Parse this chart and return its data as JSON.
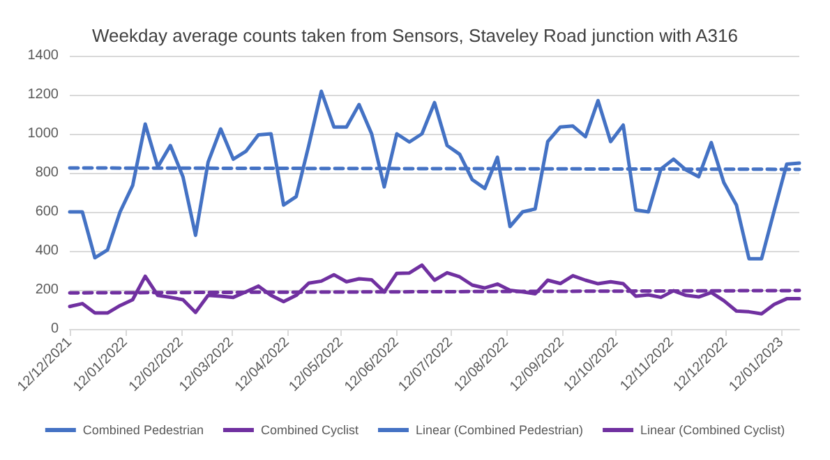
{
  "chart_data": {
    "type": "line",
    "title": "Weekday average counts taken from Sensors, Staveley Road junction with A316",
    "x": [
      "2021-12-12",
      "2021-12-19",
      "2021-12-26",
      "2022-01-02",
      "2022-01-09",
      "2022-01-16",
      "2022-01-23",
      "2022-01-30",
      "2022-02-06",
      "2022-02-13",
      "2022-02-20",
      "2022-02-27",
      "2022-03-06",
      "2022-03-13",
      "2022-03-20",
      "2022-03-27",
      "2022-04-03",
      "2022-04-10",
      "2022-04-17",
      "2022-04-24",
      "2022-05-01",
      "2022-05-08",
      "2022-05-15",
      "2022-05-22",
      "2022-05-29",
      "2022-06-05",
      "2022-06-12",
      "2022-06-19",
      "2022-06-26",
      "2022-07-03",
      "2022-07-10",
      "2022-07-17",
      "2022-07-24",
      "2022-07-31",
      "2022-08-07",
      "2022-08-14",
      "2022-08-21",
      "2022-08-28",
      "2022-09-04",
      "2022-09-11",
      "2022-09-18",
      "2022-09-25",
      "2022-10-02",
      "2022-10-09",
      "2022-10-16",
      "2022-10-23",
      "2022-10-30",
      "2022-11-06",
      "2022-11-13",
      "2022-11-20",
      "2022-11-27",
      "2022-12-04",
      "2022-12-11",
      "2022-12-18",
      "2022-12-25",
      "2023-01-01",
      "2023-01-08",
      "2023-01-15",
      "2023-01-22"
    ],
    "series": [
      {
        "name": "Combined Pedestrian",
        "color": "#4472c4",
        "values": [
          600,
          600,
          365,
          405,
          600,
          735,
          1050,
          830,
          940,
          780,
          480,
          855,
          1025,
          870,
          910,
          995,
          1000,
          635,
          678,
          940,
          1218,
          1035,
          1035,
          1150,
          1000,
          728,
          1000,
          958,
          1000,
          1160,
          940,
          895,
          765,
          720,
          880,
          525,
          600,
          615,
          960,
          1035,
          1040,
          985,
          1170,
          960,
          1045,
          610,
          600,
          820,
          870,
          815,
          780,
          955,
          750,
          635,
          360,
          360,
          605,
          845,
          850
        ]
      },
      {
        "name": "Combined Cyclist",
        "color": "#7030a0",
        "values": [
          115,
          130,
          82,
          82,
          120,
          150,
          270,
          172,
          162,
          150,
          85,
          172,
          168,
          162,
          190,
          220,
          172,
          140,
          172,
          235,
          245,
          278,
          242,
          257,
          252,
          190,
          285,
          287,
          327,
          250,
          288,
          267,
          225,
          210,
          230,
          198,
          190,
          180,
          250,
          233,
          273,
          250,
          232,
          242,
          232,
          168,
          175,
          162,
          196,
          172,
          164,
          187,
          145,
          92,
          88,
          78,
          126,
          155,
          155
        ]
      },
      {
        "name": "Linear (Combined Pedestrian)",
        "color": "#4472c4",
        "line_style": "dashed",
        "x": [
          "2021-12-12",
          "2023-01-22"
        ],
        "values": [
          825,
          818
        ]
      },
      {
        "name": "Linear (Combined Cyclist)",
        "color": "#7030a0",
        "line_style": "dashed",
        "x": [
          "2021-12-12",
          "2023-01-22"
        ],
        "values": [
          185,
          197
        ]
      }
    ],
    "xlim": [
      "2021-12-12",
      "2023-01-22"
    ],
    "xticks": [
      {
        "value": "2021-12-12",
        "label": "12/12/2021"
      },
      {
        "value": "2022-01-12",
        "label": "12/01/2022"
      },
      {
        "value": "2022-02-12",
        "label": "12/02/2022"
      },
      {
        "value": "2022-03-12",
        "label": "12/03/2022"
      },
      {
        "value": "2022-04-12",
        "label": "12/04/2022"
      },
      {
        "value": "2022-05-12",
        "label": "12/05/2022"
      },
      {
        "value": "2022-06-12",
        "label": "12/06/2022"
      },
      {
        "value": "2022-07-12",
        "label": "12/07/2022"
      },
      {
        "value": "2022-08-12",
        "label": "12/08/2022"
      },
      {
        "value": "2022-09-12",
        "label": "12/09/2022"
      },
      {
        "value": "2022-10-12",
        "label": "12/10/2022"
      },
      {
        "value": "2022-11-12",
        "label": "12/11/2022"
      },
      {
        "value": "2022-12-12",
        "label": "12/12/2022"
      },
      {
        "value": "2023-01-12",
        "label": "12/01/2023"
      }
    ],
    "ylim": [
      0,
      1400
    ],
    "yticks": [
      0,
      200,
      400,
      600,
      800,
      1000,
      1200,
      1400
    ],
    "grid": "y",
    "legend": "bottom",
    "marker": "none",
    "line_style": "solid"
  }
}
